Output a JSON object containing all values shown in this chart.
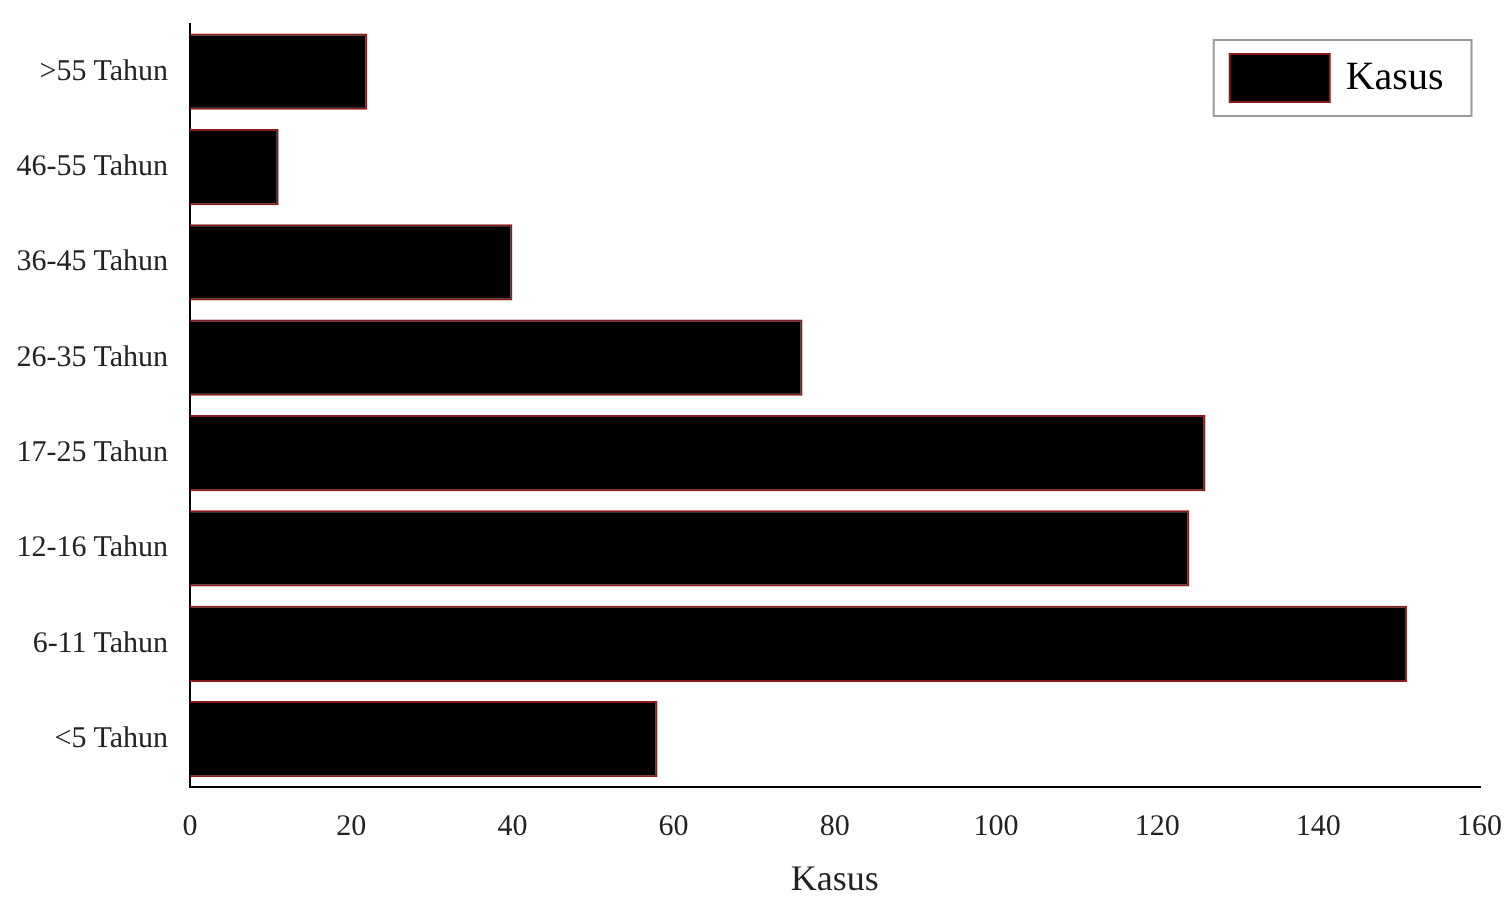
{
  "chart_data": {
    "type": "bar",
    "orientation": "horizontal",
    "xlabel": "Kasus",
    "categories": [
      ">55 Tahun",
      "46-55 Tahun",
      "36-45 Tahun",
      "26-35 Tahun",
      "17-25 Tahun",
      "12-16 Tahun",
      "6-11 Tahun",
      "<5 Tahun"
    ],
    "series": [
      {
        "name": "Kasus",
        "color": "#000000",
        "values": [
          22,
          11,
          40,
          76,
          126,
          124,
          151,
          58
        ]
      }
    ],
    "xlim": [
      0,
      160
    ],
    "xticks": [
      0,
      20,
      40,
      60,
      80,
      100,
      120,
      140,
      160
    ],
    "legend": "top right",
    "grid": false
  }
}
